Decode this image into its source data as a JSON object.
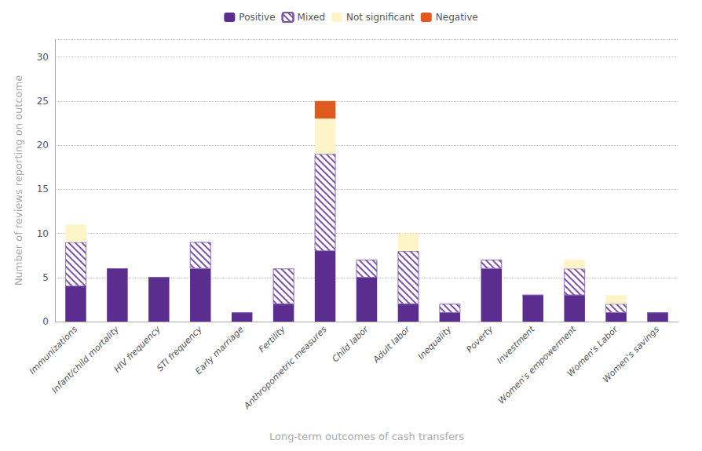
{
  "chart_data": {
    "type": "bar",
    "stacked": true,
    "categories": [
      "Immunizations",
      "Infant/child mortality",
      "HIV frequency",
      "STI frequency",
      "Early marriage",
      "Fertility",
      "Anthropometric measures",
      "Child labor",
      "Adult labor",
      "Inequality",
      "Poverty",
      "Investment",
      "Women's empowerment",
      "Women's Labor",
      "Women's savings"
    ],
    "series": [
      {
        "name": "Positive",
        "color": "#5b2d8e",
        "values": [
          4,
          6,
          5,
          6,
          1,
          2,
          8,
          5,
          2,
          1,
          6,
          3,
          3,
          1,
          1
        ]
      },
      {
        "name": "Mixed",
        "color": "#7b52a8",
        "values": [
          5,
          0,
          0,
          3,
          0,
          4,
          11,
          2,
          6,
          1,
          1,
          0,
          3,
          1,
          0
        ]
      },
      {
        "name": "Not significant",
        "color": "#fdf5c8",
        "values": [
          2,
          0,
          0,
          0,
          0,
          0,
          4,
          0,
          2,
          0,
          0,
          0,
          1,
          1,
          0
        ]
      },
      {
        "name": "Negative",
        "color": "#e05a20",
        "values": [
          0,
          0,
          0,
          0,
          0,
          0,
          2,
          0,
          0,
          0,
          0,
          0,
          0,
          0,
          0
        ]
      }
    ],
    "xlabel": "Long-term outcomes of cash transfers",
    "ylabel": "Number of reviews reporting on outcome",
    "ylim": [
      0,
      32
    ],
    "yticks": [
      0,
      5,
      10,
      15,
      20,
      25,
      30
    ],
    "grid": true,
    "legend": "top"
  }
}
